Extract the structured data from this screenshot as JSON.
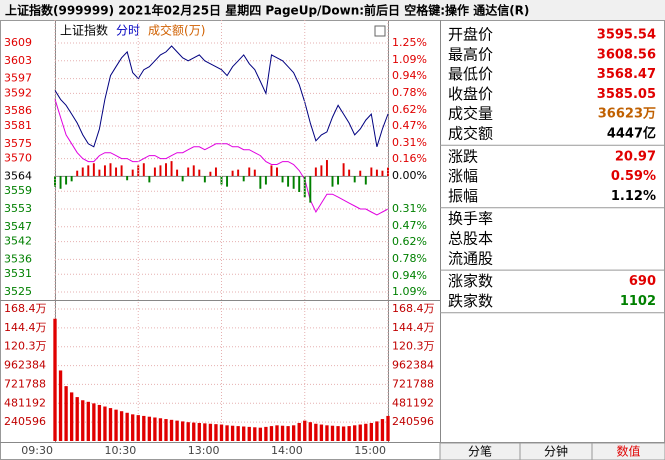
{
  "header": {
    "title": "上证指数(999999)  2021年02月25日 星期四 PageUp/Down:前后日 空格键:操作 通达信(R)"
  },
  "chart_data": [
    {
      "type": "line",
      "legend": [
        {
          "text": "上证指数",
          "color": "#000000"
        },
        {
          "text": "分时",
          "color": "#0000c0"
        },
        {
          "text": "成交额(万)",
          "color": "#d06000"
        }
      ],
      "x": [
        0,
        4,
        8,
        12,
        16,
        20,
        24,
        28,
        32,
        36,
        40,
        44,
        48,
        52,
        56,
        60,
        64,
        68,
        72,
        76,
        80,
        84,
        88,
        92,
        96,
        100,
        104,
        108,
        112,
        116,
        120,
        124,
        128,
        132,
        136,
        140,
        144,
        148,
        152,
        156,
        160,
        164,
        168,
        172,
        176,
        180,
        184,
        188,
        192,
        196,
        200,
        204,
        208,
        212,
        216,
        220,
        224,
        228,
        232,
        236,
        240
      ],
      "xlim": [
        0,
        240
      ],
      "ylim": [
        3525,
        3609
      ],
      "yticks": [
        3609,
        3603,
        3597,
        3592,
        3586,
        3581,
        3575,
        3570,
        3564,
        3559,
        3553,
        3547,
        3542,
        3536,
        3531,
        3525
      ],
      "y2lim": [
        -1.09,
        1.25
      ],
      "y2ticks": [
        {
          "value": 1.25,
          "label": "1.25%"
        },
        {
          "value": 1.09,
          "label": "1.09%"
        },
        {
          "value": 0.94,
          "label": "0.94%"
        },
        {
          "value": 0.78,
          "label": "0.78%"
        },
        {
          "value": 0.62,
          "label": "0.62%"
        },
        {
          "value": 0.47,
          "label": "0.47%"
        },
        {
          "value": 0.31,
          "label": "0.31%"
        },
        {
          "value": 0.16,
          "label": "0.16%"
        },
        {
          "value": 0,
          "label": "0.00%"
        },
        {
          "value": -0.31,
          "label": "0.31%"
        },
        {
          "value": -0.47,
          "label": "0.47%"
        },
        {
          "value": -0.62,
          "label": "0.62%"
        },
        {
          "value": -0.78,
          "label": "0.78%"
        },
        {
          "value": -0.94,
          "label": "0.94%"
        },
        {
          "value": -1.09,
          "label": "1.09%"
        }
      ],
      "up_color": "#e00000",
      "down_color": "#008000",
      "grid": true,
      "series": [
        {
          "color": "#000080",
          "values": [
            3593,
            3590,
            3588,
            3585,
            3582,
            3578,
            3575,
            3574,
            3580,
            3590,
            3598,
            3601,
            3604,
            3606,
            3599,
            3597,
            3600,
            3601,
            3603,
            3605,
            3606,
            3608,
            3606,
            3604,
            3603,
            3604,
            3605,
            3603,
            3602,
            3601,
            3600,
            3598,
            3601,
            3603,
            3605,
            3602,
            3600,
            3596,
            3592,
            3605,
            3604,
            3603,
            3601,
            3599,
            3595,
            3589,
            3582,
            3576,
            3578,
            3579,
            3584,
            3588,
            3585,
            3582,
            3578,
            3580,
            3583,
            3585,
            3574,
            3580,
            3585.05
          ]
        },
        {
          "color": "#e000e0",
          "values": [
            3590,
            3584,
            3578,
            3575,
            3572,
            3570,
            3569,
            3569,
            3571,
            3572,
            3572,
            3571,
            3570,
            3570,
            3569,
            3569,
            3570,
            3571,
            3571,
            3570,
            3570,
            3571,
            3572,
            3572,
            3573,
            3574,
            3574,
            3573,
            3574,
            3575,
            3575,
            3575,
            3574,
            3574,
            3573,
            3573,
            3572,
            3571,
            3569,
            3568,
            3568,
            3569,
            3569,
            3568,
            3566,
            3563,
            3556,
            3552,
            3555,
            3558,
            3558,
            3557,
            3556,
            3555,
            3554,
            3553,
            3553,
            3552,
            3551,
            3552,
            3553
          ]
        },
        {
          "type": "bar",
          "axis": "y2",
          "values": [
            -0.1,
            -0.12,
            -0.08,
            -0.05,
            0.05,
            0.08,
            0.1,
            0.12,
            0.06,
            0.1,
            0.12,
            0.08,
            0.1,
            -0.04,
            0.06,
            0.1,
            0.12,
            -0.06,
            0.08,
            0.1,
            0.12,
            0.14,
            0.06,
            -0.05,
            0.08,
            0.1,
            0.06,
            -0.06,
            0.04,
            0.08,
            -0.08,
            -0.1,
            0.05,
            0.06,
            -0.05,
            0.08,
            0.06,
            -0.12,
            -0.08,
            0.1,
            0.08,
            -0.06,
            -0.1,
            -0.12,
            -0.15,
            -0.2,
            -0.25,
            0.08,
            0.1,
            0.15,
            -0.1,
            -0.08,
            0.12,
            0.06,
            -0.06,
            0.05,
            -0.08,
            0.08,
            0.06,
            0.05,
            0.08
          ]
        }
      ]
    },
    {
      "type": "bar",
      "color": "#e00000",
      "x": [
        0,
        4,
        8,
        12,
        16,
        20,
        24,
        28,
        32,
        36,
        40,
        44,
        48,
        52,
        56,
        60,
        64,
        68,
        72,
        76,
        80,
        84,
        88,
        92,
        96,
        100,
        104,
        108,
        112,
        116,
        120,
        124,
        128,
        132,
        136,
        140,
        144,
        148,
        152,
        156,
        160,
        164,
        168,
        172,
        176,
        180,
        184,
        188,
        192,
        196,
        200,
        204,
        208,
        212,
        216,
        220,
        224,
        228,
        232,
        236,
        240
      ],
      "xlim": [
        0,
        240
      ],
      "xticks": [
        {
          "value": 0,
          "label": "09:30"
        },
        {
          "value": 60,
          "label": "10:30"
        },
        {
          "value": 120,
          "label": "13:00"
        },
        {
          "value": 180,
          "label": "14:00"
        },
        {
          "value": 240,
          "label": "15:00"
        }
      ],
      "ylim": [
        0,
        1684000
      ],
      "yticks": [
        {
          "value": 1684000,
          "label": "168.4万"
        },
        {
          "value": 1443600,
          "label": "144.4万"
        },
        {
          "value": 1203000,
          "label": "120.3万"
        },
        962384,
        721788,
        481192,
        240596
      ],
      "values": [
        1560000,
        900000,
        700000,
        620000,
        560000,
        520000,
        500000,
        480000,
        460000,
        440000,
        420000,
        400000,
        380000,
        360000,
        340000,
        330000,
        320000,
        310000,
        300000,
        290000,
        280000,
        270000,
        260000,
        250000,
        240000,
        235000,
        230000,
        225000,
        220000,
        215000,
        210000,
        200000,
        195000,
        190000,
        185000,
        180000,
        175000,
        170000,
        180000,
        190000,
        200000,
        195000,
        190000,
        200000,
        230000,
        260000,
        240000,
        220000,
        210000,
        200000,
        195000,
        190000,
        185000,
        190000,
        200000,
        210000,
        220000,
        230000,
        250000,
        280000,
        320000
      ]
    }
  ],
  "quote": {
    "groups": [
      [
        {
          "label": "开盘价",
          "value": "3595.54",
          "color": "#e00000"
        },
        {
          "label": "最高价",
          "value": "3608.56",
          "color": "#e00000"
        },
        {
          "label": "最低价",
          "value": "3568.47",
          "color": "#e00000"
        },
        {
          "label": "收盘价",
          "value": "3585.05",
          "color": "#e00000"
        },
        {
          "label": "成交量",
          "value": "36623万",
          "color": "#c06000"
        },
        {
          "label": "成交额",
          "value": "4447亿",
          "color": "#000000"
        }
      ],
      [
        {
          "label": "涨跌",
          "value": "20.97",
          "color": "#e00000"
        },
        {
          "label": "涨幅",
          "value": "0.59%",
          "color": "#e00000"
        },
        {
          "label": "振幅",
          "value": "1.12%",
          "color": "#000000"
        }
      ],
      [
        {
          "label": "换手率"
        },
        {
          "label": "总股本"
        },
        {
          "label": "流通股"
        }
      ],
      [
        {
          "label": "涨家数",
          "value": "690",
          "color": "#e00000"
        },
        {
          "label": "跌家数",
          "value": "1102",
          "color": "#008000"
        }
      ]
    ]
  },
  "tabs": [
    {
      "label": "分笔"
    },
    {
      "label": "分钟"
    },
    {
      "label": "数值",
      "active": true
    }
  ]
}
